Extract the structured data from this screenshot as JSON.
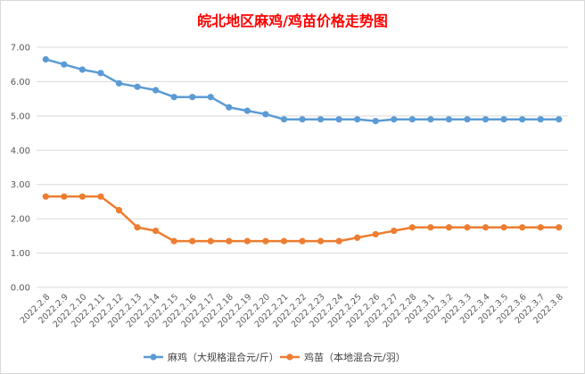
{
  "chart_data": {
    "type": "line",
    "title": "皖北地区麻鸡/鸡苗价格走势图",
    "title_color": "#ff0000",
    "xlabel": "",
    "ylabel": "",
    "ylim": [
      0,
      7
    ],
    "ytick_step": 1,
    "ytick_labels": [
      "0.00",
      "1.00",
      "2.00",
      "3.00",
      "4.00",
      "5.00",
      "6.00",
      "7.00"
    ],
    "grid": "horizontal",
    "legend_position": "bottom",
    "categories": [
      "2022.2.8",
      "2022.2.9",
      "2022.2.10",
      "2022.2.11",
      "2022.2.12",
      "2022.2.13",
      "2022.2.14",
      "2022.2.15",
      "2022.2.16",
      "2022.2.17",
      "2022.2.18",
      "2022.2.19",
      "2022.2.20",
      "2022.2.21",
      "2022.2.22",
      "2022.2.23",
      "2022.2.24",
      "2022.2.25",
      "2022.2.26",
      "2022.2.27",
      "2022.2.28",
      "2022.3.1",
      "2022.3.2",
      "2022.3.3",
      "2022.3.4",
      "2022.3.5",
      "2022.3.6",
      "2022.3.7",
      "2022.3.8"
    ],
    "series": [
      {
        "name": "麻鸡（大规格混合元/斤）",
        "color": "#5b9bd5",
        "values": [
          6.65,
          6.5,
          6.35,
          6.25,
          5.95,
          5.85,
          5.75,
          5.55,
          5.55,
          5.55,
          5.25,
          5.15,
          5.05,
          4.9,
          4.9,
          4.9,
          4.9,
          4.9,
          4.85,
          4.9,
          4.9,
          4.9,
          4.9,
          4.9,
          4.9,
          4.9,
          4.9,
          4.9,
          4.9
        ]
      },
      {
        "name": "鸡苗（本地混合元/羽）",
        "color": "#ed7d31",
        "values": [
          2.65,
          2.65,
          2.65,
          2.65,
          2.25,
          1.75,
          1.65,
          1.35,
          1.35,
          1.35,
          1.35,
          1.35,
          1.35,
          1.35,
          1.35,
          1.35,
          1.35,
          1.45,
          1.55,
          1.65,
          1.75,
          1.75,
          1.75,
          1.75,
          1.75,
          1.75,
          1.75,
          1.75,
          1.75
        ]
      }
    ]
  }
}
